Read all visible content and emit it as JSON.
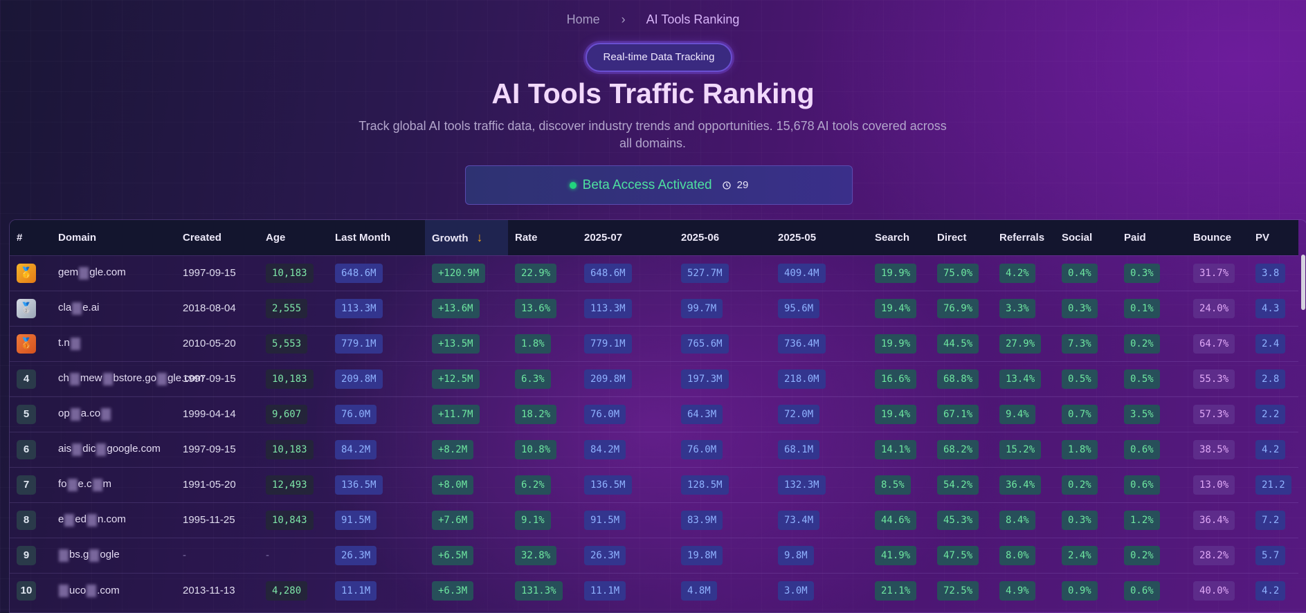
{
  "breadcrumb": {
    "home": "Home",
    "separator": "›",
    "current": "AI Tools Ranking"
  },
  "badge": "Real-time Data Tracking",
  "title": "AI Tools Traffic Ranking",
  "subtitle": "Track global AI tools traffic data, discover industry trends and opportunities. 15,678 AI tools covered across all domains.",
  "beta": {
    "label": "Beta Access Activated",
    "count": "29"
  },
  "table": {
    "headers": [
      "#",
      "Domain",
      "Created",
      "Age",
      "Last Month",
      "Growth",
      "Rate",
      "2025-07",
      "2025-06",
      "2025-05",
      "Search",
      "Direct",
      "Referrals",
      "Social",
      "Paid",
      "Bounce",
      "PV"
    ],
    "sort_indicator": "↓",
    "rows": [
      {
        "rank": "1",
        "medal": "🥇",
        "domain": [
          "gem",
          "gle.com"
        ],
        "created": "1997-09-15",
        "age": "10,183",
        "last_month": "648.6M",
        "growth": "+120.9M",
        "rate": "22.9%",
        "m07": "648.6M",
        "m06": "527.7M",
        "m05": "409.4M",
        "search": "19.9%",
        "direct": "75.0%",
        "referrals": "4.2%",
        "social": "0.4%",
        "paid": "0.3%",
        "bounce": "31.7%",
        "pv": "3.8"
      },
      {
        "rank": "2",
        "medal": "🥈",
        "domain": [
          "cla",
          "e.ai"
        ],
        "created": "2018-08-04",
        "age": "2,555",
        "last_month": "113.3M",
        "growth": "+13.6M",
        "rate": "13.6%",
        "m07": "113.3M",
        "m06": "99.7M",
        "m05": "95.6M",
        "search": "19.4%",
        "direct": "76.9%",
        "referrals": "3.3%",
        "social": "0.3%",
        "paid": "0.1%",
        "bounce": "24.0%",
        "pv": "4.3"
      },
      {
        "rank": "3",
        "medal": "🥉",
        "domain": [
          "t.n",
          ""
        ],
        "created": "2010-05-20",
        "age": "5,553",
        "last_month": "779.1M",
        "growth": "+13.5M",
        "rate": "1.8%",
        "m07": "779.1M",
        "m06": "765.6M",
        "m05": "736.4M",
        "search": "19.9%",
        "direct": "44.5%",
        "referrals": "27.9%",
        "social": "7.3%",
        "paid": "0.2%",
        "bounce": "64.7%",
        "pv": "2.4"
      },
      {
        "rank": "4",
        "medal": "",
        "domain": [
          "ch",
          "mew",
          "bstore.go",
          "gle.com"
        ],
        "created": "1997-09-15",
        "age": "10,183",
        "last_month": "209.8M",
        "growth": "+12.5M",
        "rate": "6.3%",
        "m07": "209.8M",
        "m06": "197.3M",
        "m05": "218.0M",
        "search": "16.6%",
        "direct": "68.8%",
        "referrals": "13.4%",
        "social": "0.5%",
        "paid": "0.5%",
        "bounce": "55.3%",
        "pv": "2.8"
      },
      {
        "rank": "5",
        "medal": "",
        "domain": [
          "op",
          "a.co",
          ""
        ],
        "created": "1999-04-14",
        "age": "9,607",
        "last_month": "76.0M",
        "growth": "+11.7M",
        "rate": "18.2%",
        "m07": "76.0M",
        "m06": "64.3M",
        "m05": "72.0M",
        "search": "19.4%",
        "direct": "67.1%",
        "referrals": "9.4%",
        "social": "0.7%",
        "paid": "3.5%",
        "bounce": "57.3%",
        "pv": "2.2"
      },
      {
        "rank": "6",
        "medal": "",
        "domain": [
          "ais",
          "dic",
          "google.com"
        ],
        "created": "1997-09-15",
        "age": "10,183",
        "last_month": "84.2M",
        "growth": "+8.2M",
        "rate": "10.8%",
        "m07": "84.2M",
        "m06": "76.0M",
        "m05": "68.1M",
        "search": "14.1%",
        "direct": "68.2%",
        "referrals": "15.2%",
        "social": "1.8%",
        "paid": "0.6%",
        "bounce": "38.5%",
        "pv": "4.2"
      },
      {
        "rank": "7",
        "medal": "",
        "domain": [
          "fo",
          "e.c",
          "m"
        ],
        "created": "1991-05-20",
        "age": "12,493",
        "last_month": "136.5M",
        "growth": "+8.0M",
        "rate": "6.2%",
        "m07": "136.5M",
        "m06": "128.5M",
        "m05": "132.3M",
        "search": "8.5%",
        "direct": "54.2%",
        "referrals": "36.4%",
        "social": "0.2%",
        "paid": "0.6%",
        "bounce": "13.0%",
        "pv": "21.2"
      },
      {
        "rank": "8",
        "medal": "",
        "domain": [
          "e",
          "ed",
          "n.com"
        ],
        "created": "1995-11-25",
        "age": "10,843",
        "last_month": "91.5M",
        "growth": "+7.6M",
        "rate": "9.1%",
        "m07": "91.5M",
        "m06": "83.9M",
        "m05": "73.4M",
        "search": "44.6%",
        "direct": "45.3%",
        "referrals": "8.4%",
        "social": "0.3%",
        "paid": "1.2%",
        "bounce": "36.4%",
        "pv": "7.2"
      },
      {
        "rank": "9",
        "medal": "",
        "domain": [
          "",
          "bs.g",
          "ogle"
        ],
        "created": "-",
        "age": "-",
        "last_month": "26.3M",
        "growth": "+6.5M",
        "rate": "32.8%",
        "m07": "26.3M",
        "m06": "19.8M",
        "m05": "9.8M",
        "search": "41.9%",
        "direct": "47.5%",
        "referrals": "8.0%",
        "social": "2.4%",
        "paid": "0.2%",
        "bounce": "28.2%",
        "pv": "5.7"
      },
      {
        "rank": "10",
        "medal": "",
        "domain": [
          "",
          "uco",
          ".com"
        ],
        "created": "2013-11-13",
        "age": "4,280",
        "last_month": "11.1M",
        "growth": "+6.3M",
        "rate": "131.3%",
        "m07": "11.1M",
        "m06": "4.8M",
        "m05": "3.0M",
        "search": "21.1%",
        "direct": "72.5%",
        "referrals": "4.9%",
        "social": "0.9%",
        "paid": "0.6%",
        "bounce": "40.0%",
        "pv": "4.2"
      }
    ]
  }
}
